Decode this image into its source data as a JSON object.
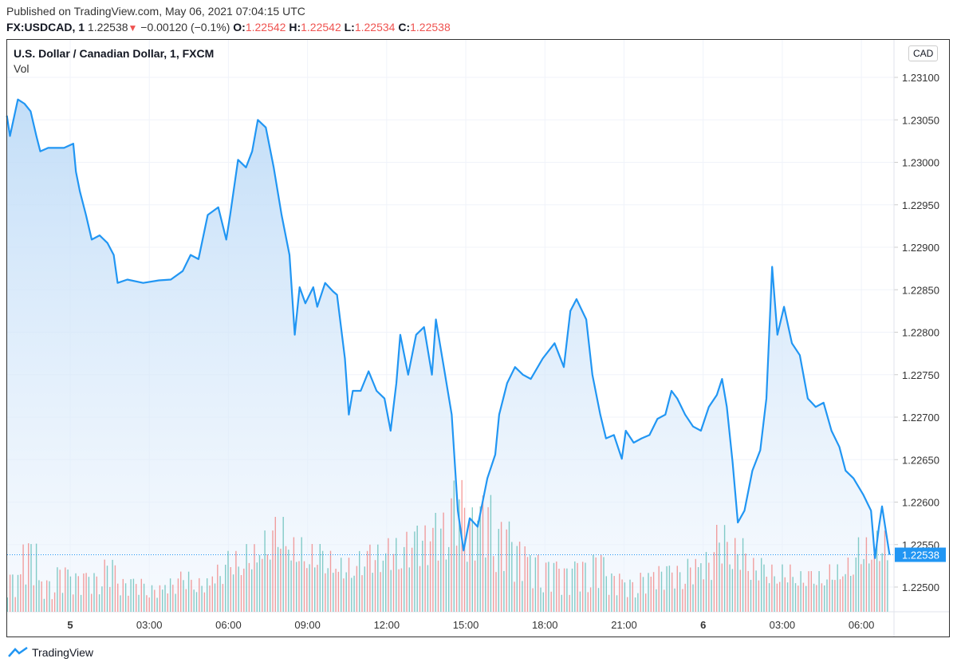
{
  "published": "Published on TradingView.com, May 06, 2021 07:04:15 UTC",
  "quote": {
    "symbol": "FX:USDCAD, 1",
    "last": "1.22538",
    "change": "−0.00120 (−0.1%)",
    "direction_icon": "down-triangle-icon",
    "o_label": "O:",
    "o": "1.22542",
    "h_label": "H:",
    "h": "1.22542",
    "l_label": "L:",
    "l": "1.22534",
    "c_label": "C:",
    "c": "1.22538"
  },
  "legend": {
    "title": "U.S. Dollar / Canadian Dollar, 1, FXCM",
    "vol": "Vol"
  },
  "currency_badge": "CAD",
  "logo": "TradingView",
  "colors": {
    "line": "#2196f3",
    "up": "#26a69a",
    "down": "#ef5350",
    "down_text": "#ef5350",
    "last_price_bg": "#2196f3"
  },
  "chart_data": {
    "type": "line",
    "title": "U.S. Dollar / Canadian Dollar, 1, FXCM",
    "ylim": [
      1.2246,
      1.2314
    ],
    "y_ticks": [
      "1.23100",
      "1.23050",
      "1.23000",
      "1.22950",
      "1.22900",
      "1.22850",
      "1.22800",
      "1.22750",
      "1.22700",
      "1.22650",
      "1.22600",
      "1.22550",
      "1.22500"
    ],
    "x_ticks": [
      {
        "label": "5",
        "t": "05-05 00:00",
        "bold": true
      },
      {
        "label": "03:00",
        "t": "05-05 03:00"
      },
      {
        "label": "06:00",
        "t": "05-05 06:00"
      },
      {
        "label": "09:00",
        "t": "05-05 09:00"
      },
      {
        "label": "12:00",
        "t": "05-05 12:00"
      },
      {
        "label": "15:00",
        "t": "05-05 15:00"
      },
      {
        "label": "18:00",
        "t": "05-05 18:00"
      },
      {
        "label": "21:00",
        "t": "05-05 21:00"
      },
      {
        "label": "6",
        "t": "05-06 00:00",
        "bold": true
      },
      {
        "label": "03:00",
        "t": "05-06 03:00"
      },
      {
        "label": "06:00",
        "t": "05-06 06:00"
      }
    ],
    "last_price": "1.22538",
    "price": [
      [
        "05-04 21:36",
        1.23055
      ],
      [
        "05-04 21:43",
        1.23031
      ],
      [
        "05-04 22:01",
        1.23074
      ],
      [
        "05-04 22:16",
        1.23069
      ],
      [
        "05-04 22:30",
        1.2306
      ],
      [
        "05-04 22:43",
        1.23031
      ],
      [
        "05-04 22:52",
        1.23013
      ],
      [
        "05-04 23:10",
        1.23017
      ],
      [
        "05-04 23:46",
        1.23017
      ],
      [
        "05-05 00:07",
        1.23022
      ],
      [
        "05-05 00:13",
        1.22989
      ],
      [
        "05-05 00:22",
        1.22966
      ],
      [
        "05-05 00:36",
        1.22938
      ],
      [
        "05-05 00:49",
        1.22909
      ],
      [
        "05-05 01:07",
        1.22914
      ],
      [
        "05-05 01:25",
        1.22905
      ],
      [
        "05-05 01:39",
        1.22891
      ],
      [
        "05-05 01:48",
        1.22858
      ],
      [
        "05-05 02:10",
        1.22862
      ],
      [
        "05-05 02:46",
        1.22858
      ],
      [
        "05-05 03:22",
        1.22861
      ],
      [
        "05-05 03:49",
        1.22862
      ],
      [
        "05-05 04:16",
        1.22872
      ],
      [
        "05-05 04:34",
        1.22891
      ],
      [
        "05-05 04:52",
        1.22886
      ],
      [
        "05-05 05:13",
        1.22938
      ],
      [
        "05-05 05:37",
        1.22947
      ],
      [
        "05-05 05:55",
        1.22909
      ],
      [
        "05-05 06:04",
        1.22938
      ],
      [
        "05-05 06:22",
        1.23003
      ],
      [
        "05-05 06:40",
        1.22994
      ],
      [
        "05-05 06:54",
        1.23013
      ],
      [
        "05-05 07:07",
        1.2305
      ],
      [
        "05-05 07:25",
        1.23041
      ],
      [
        "05-05 07:43",
        1.22994
      ],
      [
        "05-05 08:01",
        1.22938
      ],
      [
        "05-05 08:19",
        1.22891
      ],
      [
        "05-05 08:31",
        1.22797
      ],
      [
        "05-05 08:42",
        1.22853
      ],
      [
        "05-05 08:55",
        1.22834
      ],
      [
        "05-05 09:13",
        1.22853
      ],
      [
        "05-05 09:22",
        1.2283
      ],
      [
        "05-05 09:40",
        1.22858
      ],
      [
        "05-05 09:58",
        1.22848
      ],
      [
        "05-05 10:07",
        1.22844
      ],
      [
        "05-05 10:25",
        1.22769
      ],
      [
        "05-05 10:34",
        1.22703
      ],
      [
        "05-05 10:43",
        1.22731
      ],
      [
        "05-05 11:01",
        1.22731
      ],
      [
        "05-05 11:19",
        1.22754
      ],
      [
        "05-05 11:37",
        1.22731
      ],
      [
        "05-05 11:55",
        1.22722
      ],
      [
        "05-05 12:09",
        1.22684
      ],
      [
        "05-05 12:22",
        1.2274
      ],
      [
        "05-05 12:31",
        1.22797
      ],
      [
        "05-05 12:49",
        1.2275
      ],
      [
        "05-05 13:07",
        1.22797
      ],
      [
        "05-05 13:25",
        1.22806
      ],
      [
        "05-05 13:43",
        1.2275
      ],
      [
        "05-05 13:52",
        1.22815
      ],
      [
        "05-05 14:01",
        1.22787
      ],
      [
        "05-05 14:10",
        1.22759
      ],
      [
        "05-05 14:28",
        1.22703
      ],
      [
        "05-05 14:42",
        1.2259
      ],
      [
        "05-05 14:55",
        1.22543
      ],
      [
        "05-05 15:09",
        1.22581
      ],
      [
        "05-05 15:27",
        1.22571
      ],
      [
        "05-05 15:49",
        1.22628
      ],
      [
        "05-05 16:07",
        1.22656
      ],
      [
        "05-05 16:16",
        1.22703
      ],
      [
        "05-05 16:34",
        1.2274
      ],
      [
        "05-05 16:52",
        1.22759
      ],
      [
        "05-05 17:10",
        1.2275
      ],
      [
        "05-05 17:28",
        1.22745
      ],
      [
        "05-05 17:55",
        1.22769
      ],
      [
        "05-05 18:22",
        1.22787
      ],
      [
        "05-05 18:43",
        1.22759
      ],
      [
        "05-05 18:58",
        1.22825
      ],
      [
        "05-05 19:12",
        1.22839
      ],
      [
        "05-05 19:34",
        1.22815
      ],
      [
        "05-05 19:48",
        1.2275
      ],
      [
        "05-05 20:06",
        1.22703
      ],
      [
        "05-05 20:19",
        1.22675
      ],
      [
        "05-05 20:37",
        1.22679
      ],
      [
        "05-05 20:55",
        1.22651
      ],
      [
        "05-05 21:04",
        1.22684
      ],
      [
        "05-05 21:22",
        1.2267
      ],
      [
        "05-05 21:40",
        1.22675
      ],
      [
        "05-05 21:58",
        1.22679
      ],
      [
        "05-05 22:16",
        1.22698
      ],
      [
        "05-05 22:34",
        1.22703
      ],
      [
        "05-05 22:48",
        1.22731
      ],
      [
        "05-05 23:01",
        1.22722
      ],
      [
        "05-05 23:19",
        1.22703
      ],
      [
        "05-05 23:37",
        1.22689
      ],
      [
        "05-05 23:55",
        1.22684
      ],
      [
        "05-06 00:13",
        1.22712
      ],
      [
        "05-06 00:31",
        1.22726
      ],
      [
        "05-06 00:43",
        1.22745
      ],
      [
        "05-06 00:54",
        1.22712
      ],
      [
        "05-06 01:07",
        1.22647
      ],
      [
        "05-06 01:19",
        1.22576
      ],
      [
        "05-06 01:34",
        1.2259
      ],
      [
        "05-06 01:52",
        1.22637
      ],
      [
        "05-06 02:10",
        1.22661
      ],
      [
        "05-06 02:24",
        1.22722
      ],
      [
        "05-06 02:37",
        1.22877
      ],
      [
        "05-06 02:49",
        1.22797
      ],
      [
        "05-06 03:04",
        1.2283
      ],
      [
        "05-06 03:22",
        1.22787
      ],
      [
        "05-06 03:40",
        1.22773
      ],
      [
        "05-06 03:58",
        1.22722
      ],
      [
        "05-06 04:16",
        1.22712
      ],
      [
        "05-06 04:34",
        1.22717
      ],
      [
        "05-06 04:52",
        1.22684
      ],
      [
        "05-06 05:10",
        1.22665
      ],
      [
        "05-06 05:24",
        1.22637
      ],
      [
        "05-06 05:42",
        1.22628
      ],
      [
        "05-06 06:04",
        1.22609
      ],
      [
        "05-06 06:22",
        1.2259
      ],
      [
        "05-06 06:31",
        1.22534
      ],
      [
        "05-06 06:40",
        1.22571
      ],
      [
        "05-06 06:47",
        1.22595
      ],
      [
        "05-06 07:04",
        1.22538
      ]
    ],
    "volume_relative": [
      30,
      55,
      25,
      35,
      30,
      30,
      40,
      25,
      25,
      20,
      25,
      30,
      25,
      35,
      45,
      50,
      60,
      70,
      55,
      50,
      45,
      40,
      45,
      50,
      55,
      60,
      65,
      75,
      100,
      80,
      90,
      70,
      55,
      45,
      40,
      35,
      40,
      45,
      30,
      25,
      30,
      35,
      35,
      40,
      45,
      65,
      55,
      40,
      35,
      35,
      30,
      30,
      35,
      40,
      55,
      60
    ]
  }
}
